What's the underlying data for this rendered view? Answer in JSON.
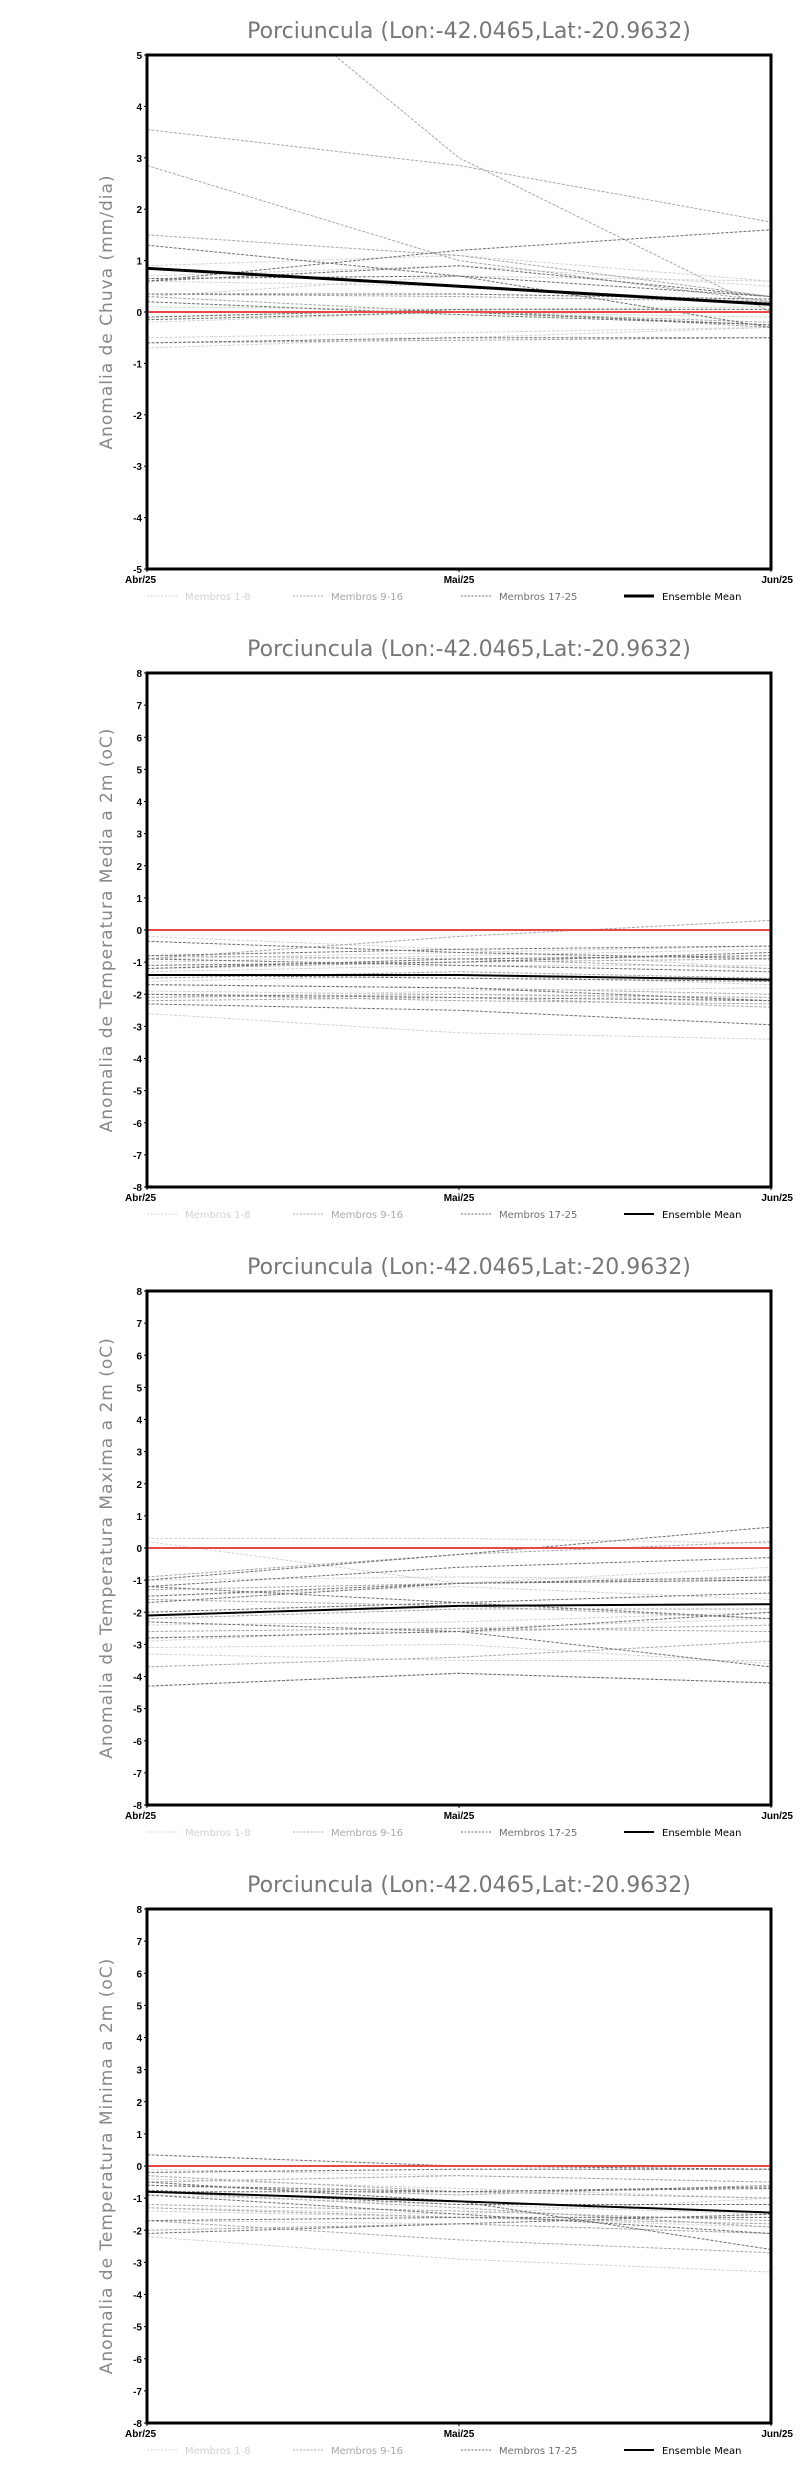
{
  "chart_data": [
    {
      "type": "line",
      "title": "Porciuncula (Lon:-42.0465,Lat:-20.9632)",
      "ylabel": "Anomalia de Chuva (mm/dia)",
      "categories": [
        "Abr/25",
        "Mai/25",
        "Jun/25"
      ],
      "ylim": [
        -5,
        5
      ],
      "yticks": [
        -5,
        -4,
        -3,
        -2,
        -1,
        0,
        1,
        2,
        3,
        4,
        5
      ],
      "mean_width": 3,
      "groups": [
        {
          "name": "Membros 1-8",
          "color": "#d2d2d2",
          "members": [
            [
              0.9,
              1.1,
              0.6
            ],
            [
              0.7,
              0.9,
              0.5
            ],
            [
              0.3,
              0.7,
              0.6
            ],
            [
              -0.5,
              -0.4,
              -0.3
            ],
            [
              -0.7,
              -0.5,
              -0.3
            ],
            [
              0.1,
              0.05,
              0.1
            ],
            [
              -0.2,
              0.0,
              -0.1
            ],
            [
              0.6,
              0.5,
              0.2
            ]
          ]
        },
        {
          "name": "Membros 9-16",
          "color": "#a8a8a8",
          "members": [
            [
              8.0,
              3.0,
              0.0
            ],
            [
              2.85,
              1.0,
              0.2
            ],
            [
              3.55,
              2.85,
              1.75
            ],
            [
              1.5,
              1.1,
              0.3
            ],
            [
              -0.1,
              0.05,
              -0.3
            ],
            [
              0.35,
              0.3,
              0.2
            ],
            [
              -0.6,
              -0.55,
              -0.5
            ],
            [
              0.3,
              0.0,
              -0.2
            ]
          ]
        },
        {
          "name": "Membros 17-25",
          "color": "#707070",
          "members": [
            [
              0.6,
              1.2,
              1.6
            ],
            [
              1.3,
              0.7,
              -0.3
            ],
            [
              0.65,
              0.7,
              0.3
            ],
            [
              0.35,
              0.35,
              0.25
            ],
            [
              -0.15,
              0.0,
              -0.25
            ],
            [
              0.6,
              0.9,
              0.3
            ],
            [
              0.2,
              -0.05,
              -0.25
            ],
            [
              -0.1,
              0.05,
              0.05
            ],
            [
              -0.6,
              -0.5,
              -0.5
            ]
          ]
        }
      ],
      "mean": {
        "name": "Ensemble Mean",
        "values": [
          0.85,
          0.5,
          0.15
        ]
      },
      "reference": 0
    },
    {
      "type": "line",
      "title": "Porciuncula (Lon:-42.0465,Lat:-20.9632)",
      "ylabel": "Anomalia de Temperatura Media a 2m (oC)",
      "categories": [
        "Abr/25",
        "Mai/25",
        "Jun/25"
      ],
      "ylim": [
        -8,
        8
      ],
      "yticks": [
        -8,
        -7,
        -6,
        -5,
        -4,
        -3,
        -2,
        -1,
        0,
        1,
        2,
        3,
        4,
        5,
        6,
        7,
        8
      ],
      "mean_width": 2,
      "groups": [
        {
          "name": "Membros 1-8",
          "color": "#d2d2d2",
          "members": [
            [
              -0.2,
              -0.6,
              -1.2
            ],
            [
              -2.6,
              -3.2,
              -3.4
            ],
            [
              -1.0,
              -0.8,
              -0.6
            ],
            [
              -1.3,
              -1.1,
              -1.1
            ],
            [
              -1.9,
              -2.0,
              -2.2
            ],
            [
              -0.9,
              -0.7,
              -0.5
            ],
            [
              -2.1,
              -1.9,
              -1.8
            ],
            [
              -1.6,
              -1.4,
              -1.7
            ]
          ]
        },
        {
          "name": "Membros 9-16",
          "color": "#a8a8a8",
          "members": [
            [
              -0.9,
              -0.2,
              0.3
            ],
            [
              -2.2,
              -2.1,
              -2.4
            ],
            [
              -1.2,
              -1.0,
              -0.9
            ],
            [
              -1.7,
              -1.8,
              -2.0
            ],
            [
              -2.0,
              -2.2,
              -2.3
            ],
            [
              -0.8,
              -0.9,
              -1.2
            ],
            [
              -1.5,
              -1.3,
              -1.5
            ],
            [
              -2.1,
              -2.0,
              -2.1
            ]
          ]
        },
        {
          "name": "Membros 17-25",
          "color": "#707070",
          "members": [
            [
              -0.35,
              -0.7,
              -0.9
            ],
            [
              -0.8,
              -0.6,
              -0.5
            ],
            [
              -1.1,
              -1.0,
              -0.7
            ],
            [
              -2.3,
              -2.5,
              -2.95
            ],
            [
              -1.4,
              -1.5,
              -1.6
            ],
            [
              -0.9,
              -1.1,
              -1.3
            ],
            [
              -1.7,
              -1.8,
              -2.2
            ],
            [
              -2.0,
              -2.1,
              -2.2
            ],
            [
              -1.2,
              -0.9,
              -0.8
            ]
          ]
        }
      ],
      "mean": {
        "name": "Ensemble Mean",
        "values": [
          -1.4,
          -1.4,
          -1.55
        ]
      },
      "reference": 0
    },
    {
      "type": "line",
      "title": "Porciuncula (Lon:-42.0465,Lat:-20.9632)",
      "ylabel": "Anomalia de Temperatura Maxima a 2m (oC)",
      "categories": [
        "Abr/25",
        "Mai/25",
        "Jun/25"
      ],
      "ylim": [
        -8,
        8
      ],
      "yticks": [
        -8,
        -7,
        -6,
        -5,
        -4,
        -3,
        -2,
        -1,
        0,
        1,
        2,
        3,
        4,
        5,
        6,
        7,
        8
      ],
      "mean_width": 2,
      "groups": [
        {
          "name": "Membros 1-8",
          "color": "#d2d2d2",
          "members": [
            [
              0.3,
              0.3,
              0.15
            ],
            [
              0.2,
              -1.1,
              -0.6
            ],
            [
              -2.9,
              -2.5,
              -2.2
            ],
            [
              -3.3,
              -3.5,
              -3.5
            ],
            [
              -1.0,
              -0.9,
              -1.0
            ],
            [
              -1.5,
              -1.2,
              -1.6
            ],
            [
              -2.4,
              -2.3,
              -2.0
            ],
            [
              -3.1,
              -3.0,
              -3.6
            ]
          ]
        },
        {
          "name": "Membros 9-16",
          "color": "#a8a8a8",
          "members": [
            [
              -0.9,
              -0.2,
              0.2
            ],
            [
              -1.3,
              -1.1,
              -1.0
            ],
            [
              -2.2,
              -1.9,
              -1.9
            ],
            [
              -2.8,
              -2.6,
              -2.4
            ],
            [
              -3.7,
              -3.4,
              -2.9
            ],
            [
              -4.3,
              -3.9,
              -4.2
            ],
            [
              -1.6,
              -1.8,
              -2.2
            ],
            [
              -2.6,
              -2.5,
              -2.6
            ]
          ]
        },
        {
          "name": "Membros 17-25",
          "color": "#707070",
          "members": [
            [
              -1.0,
              -0.2,
              0.65
            ],
            [
              -1.2,
              -0.6,
              -0.3
            ],
            [
              -1.5,
              -1.1,
              -0.9
            ],
            [
              -2.3,
              -2.6,
              -3.7
            ],
            [
              -4.3,
              -3.9,
              -4.2
            ],
            [
              -1.2,
              -1.7,
              -2.2
            ],
            [
              -2.0,
              -1.7,
              -1.4
            ],
            [
              -2.8,
              -2.6,
              -2.0
            ],
            [
              -1.7,
              -1.1,
              -1.0
            ]
          ]
        }
      ],
      "mean": {
        "name": "Ensemble Mean",
        "values": [
          -2.1,
          -1.8,
          -1.75
        ]
      },
      "reference": 0
    },
    {
      "type": "line",
      "title": "Porciuncula (Lon:-42.0465,Lat:-20.9632)",
      "ylabel": "Anomalia de Temperatura Minima a 2m (oC)",
      "categories": [
        "Abr/25",
        "Mai/25",
        "Jun/25"
      ],
      "ylim": [
        -8,
        8
      ],
      "yticks": [
        -8,
        -7,
        -6,
        -5,
        -4,
        -3,
        -2,
        -1,
        0,
        1,
        2,
        3,
        4,
        5,
        6,
        7,
        8
      ],
      "mean_width": 2,
      "groups": [
        {
          "name": "Membros 1-8",
          "color": "#d2d2d2",
          "members": [
            [
              -0.1,
              -0.3,
              -0.5
            ],
            [
              -2.2,
              -2.9,
              -3.3
            ],
            [
              -1.3,
              -1.5,
              -1.0
            ],
            [
              -0.4,
              -0.7,
              -1.0
            ],
            [
              -1.4,
              -1.6,
              -1.9
            ],
            [
              -0.2,
              -0.1,
              -0.1
            ],
            [
              -0.9,
              -1.2,
              -1.5
            ],
            [
              -1.7,
              -1.8,
              -2.1
            ]
          ]
        },
        {
          "name": "Membros 9-16",
          "color": "#a8a8a8",
          "members": [
            [
              -0.3,
              -0.8,
              -1.0
            ],
            [
              -1.7,
              -2.3,
              -2.7
            ],
            [
              -1.2,
              -1.4,
              -1.7
            ],
            [
              -0.6,
              -0.9,
              -0.6
            ],
            [
              -0.8,
              -1.3,
              -1.9
            ],
            [
              -2.0,
              -1.8,
              -2.1
            ],
            [
              -0.5,
              -0.3,
              -0.5
            ],
            [
              -1.3,
              -1.6,
              -1.8
            ]
          ]
        },
        {
          "name": "Membros 17-25",
          "color": "#707070",
          "members": [
            [
              0.35,
              0.0,
              -0.1
            ],
            [
              -0.2,
              -0.1,
              -0.1
            ],
            [
              -0.6,
              -0.8,
              -0.7
            ],
            [
              -0.75,
              -1.2,
              -1.2
            ],
            [
              -2.1,
              -1.8,
              -1.5
            ],
            [
              -0.9,
              -1.5,
              -2.1
            ],
            [
              -1.7,
              -1.6,
              -1.6
            ],
            [
              -0.5,
              -1.1,
              -2.6
            ],
            [
              -0.8,
              -0.8,
              -0.65
            ]
          ]
        }
      ],
      "mean": {
        "name": "Ensemble Mean",
        "values": [
          -0.8,
          -1.1,
          -1.45
        ]
      },
      "reference": 0
    }
  ],
  "colors": {
    "reference": "#e84848",
    "mean": "#000000",
    "frame": "#000000"
  }
}
